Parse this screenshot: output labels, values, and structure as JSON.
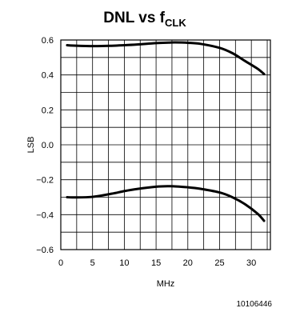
{
  "chart_data": {
    "type": "line",
    "title": "DNL vs f",
    "title_subscript": "CLK",
    "xlabel": "MHz",
    "ylabel": "LSB",
    "xlim": [
      0,
      33
    ],
    "ylim": [
      -0.6,
      0.6
    ],
    "xticks": [
      0,
      5,
      10,
      15,
      20,
      25,
      30
    ],
    "yticks": [
      0.6,
      0.4,
      0.2,
      0.0,
      -0.2,
      -0.4,
      -0.6
    ],
    "xtick_labels": [
      "0",
      "5",
      "10",
      "15",
      "20",
      "25",
      "30"
    ],
    "ytick_labels": [
      "0.6",
      "0.4",
      "0.2",
      "0.0",
      "−0.2",
      "−0.4",
      "−0.6"
    ],
    "grid": true,
    "series": [
      {
        "x": [
          1,
          2,
          5,
          8,
          10,
          12,
          15,
          17,
          18,
          20,
          22,
          25,
          27,
          29,
          31,
          32
        ],
        "values": [
          0.57,
          0.568,
          0.565,
          0.567,
          0.57,
          0.574,
          0.582,
          0.585,
          0.586,
          0.584,
          0.578,
          0.555,
          0.525,
          0.48,
          0.435,
          0.405
        ]
      },
      {
        "x": [
          1,
          2,
          5,
          8,
          10,
          12,
          15,
          17,
          18,
          20,
          22,
          25,
          27,
          29,
          31,
          32
        ],
        "values": [
          -0.3,
          -0.301,
          -0.298,
          -0.28,
          -0.265,
          -0.253,
          -0.24,
          -0.237,
          -0.238,
          -0.243,
          -0.252,
          -0.273,
          -0.3,
          -0.34,
          -0.395,
          -0.435
        ]
      }
    ]
  },
  "figure_id": "10106446"
}
